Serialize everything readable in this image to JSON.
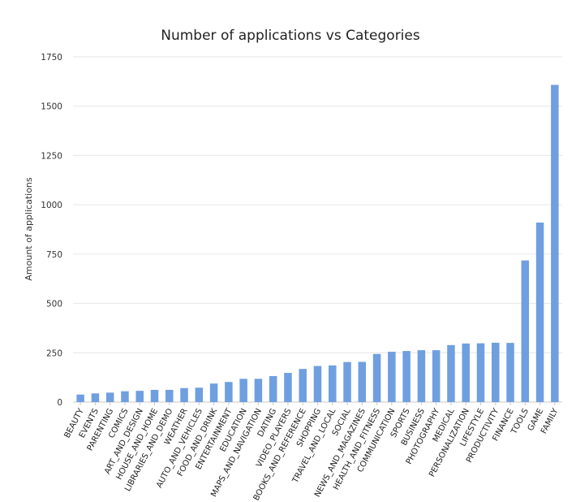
{
  "chart_data": {
    "type": "bar",
    "title": "Number of applications vs Categories",
    "xlabel": "",
    "ylabel": "Amount of applications",
    "ylim": [
      0,
      1750
    ],
    "yticks": [
      0,
      250,
      500,
      750,
      1000,
      1250,
      1500,
      1750
    ],
    "grid": true,
    "legend": "none",
    "bar_color": "#6f9fe0",
    "categories": [
      "BEAUTY",
      "EVENTS",
      "PARENTING",
      "COMICS",
      "ART_AND_DESIGN",
      "HOUSE_AND_HOME",
      "LIBRARIES_AND_DEMO",
      "WEATHER",
      "AUTO_AND_VEHICLES",
      "FOOD_AND_DRINK",
      "ENTERTAINMENT",
      "EDUCATION",
      "MAPS_AND_NAVIGATION",
      "DATING",
      "VIDEO_PLAYERS",
      "BOOKS_AND_REFERENCE",
      "SHOPPING",
      "TRAVEL_AND_LOCAL",
      "SOCIAL",
      "NEWS_AND_MAGAZINES",
      "HEALTH_AND_FITNESS",
      "COMMUNICATION",
      "SPORTS",
      "BUSINESS",
      "PHOTOGRAPHY",
      "MEDICAL",
      "PERSONALIZATION",
      "LIFESTYLE",
      "PRODUCTIVITY",
      "FINANCE",
      "TOOLS",
      "GAME",
      "FAMILY"
    ],
    "values": [
      38,
      44,
      48,
      55,
      57,
      62,
      62,
      71,
      73,
      94,
      102,
      118,
      118,
      132,
      148,
      168,
      183,
      186,
      203,
      204,
      244,
      255,
      259,
      263,
      263,
      289,
      297,
      298,
      301,
      300,
      718,
      910,
      1608
    ]
  }
}
